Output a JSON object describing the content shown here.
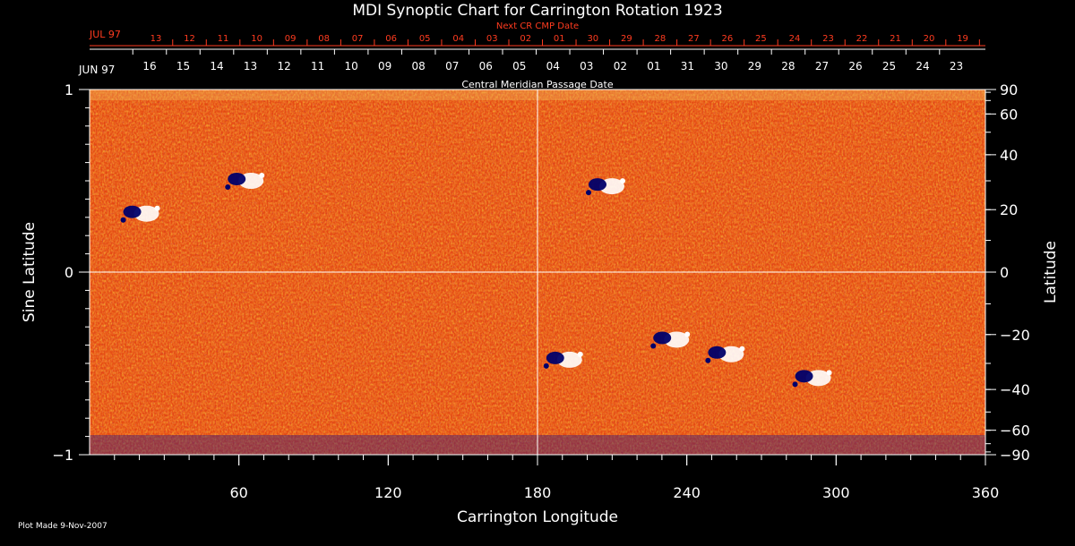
{
  "chart_data": {
    "type": "heatmap",
    "title": "MDI Synoptic Chart for Carrington Rotation 1923",
    "xlabel": "Carrington Longitude",
    "ylabel_left": "Sine Latitude",
    "ylabel_right": "Latitude",
    "xlim": [
      0,
      360
    ],
    "ylim": [
      -1,
      1
    ],
    "x_ticks": [
      "60",
      "120",
      "180",
      "240",
      "300",
      "360"
    ],
    "y_ticks_left": [
      "1",
      "0",
      "−1"
    ],
    "y_ticks_right": [
      "90",
      "60",
      "40",
      "20",
      "0",
      "−20",
      "−40",
      "−60",
      "−90"
    ],
    "top_axis": {
      "label": "Central Meridian Passage Date",
      "start_label": "JUN 97",
      "dates": [
        "16",
        "15",
        "14",
        "13",
        "12",
        "11",
        "10",
        "09",
        "08",
        "07",
        "06",
        "05",
        "04",
        "03",
        "02",
        "01",
        "31",
        "30",
        "29",
        "28",
        "27",
        "26",
        "25",
        "24",
        "23"
      ]
    },
    "next_axis": {
      "label": "Next CR CMP Date",
      "start_label": "JUL 97",
      "dates": [
        "13",
        "12",
        "11",
        "10",
        "09",
        "08",
        "07",
        "06",
        "05",
        "04",
        "03",
        "02",
        "01",
        "30",
        "29",
        "28",
        "27",
        "26",
        "25",
        "24",
        "23",
        "22",
        "21",
        "20",
        "19"
      ]
    },
    "features": [
      {
        "type": "bipolar_region",
        "lon": 20,
        "sinlat": 0.32
      },
      {
        "type": "bipolar_region",
        "lon": 62,
        "sinlat": 0.5
      },
      {
        "type": "bipolar_region",
        "lon": 207,
        "sinlat": 0.47
      },
      {
        "type": "bipolar_region",
        "lon": 190,
        "sinlat": -0.48
      },
      {
        "type": "bipolar_region",
        "lon": 255,
        "sinlat": -0.45
      },
      {
        "type": "bipolar_region",
        "lon": 290,
        "sinlat": -0.58
      },
      {
        "type": "bipolar_region",
        "lon": 233,
        "sinlat": -0.37
      }
    ],
    "colors": {
      "background": "#e44712",
      "positive": "#ffffff",
      "negative": "#00006a"
    },
    "grid": true
  },
  "footer": {
    "plot_made": "Plot Made  9-Nov-2007"
  }
}
